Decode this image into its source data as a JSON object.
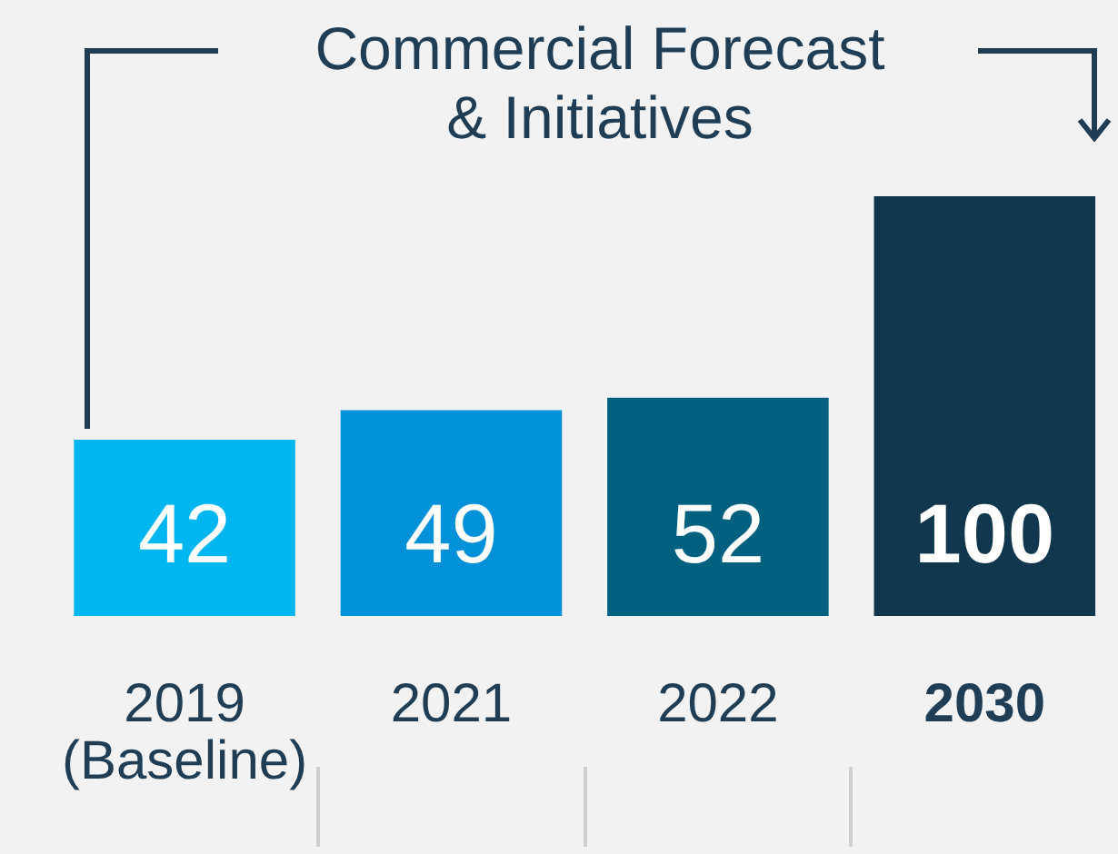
{
  "chart_data": {
    "type": "bar",
    "categories": [
      "2019 (Baseline)",
      "2021",
      "2022",
      "2030"
    ],
    "values": [
      42,
      49,
      52,
      100
    ],
    "colors": [
      "#00b6f0",
      "#0091d9",
      "#006080",
      "#10374d"
    ],
    "ylim": [
      0,
      100
    ],
    "data_labels": true,
    "grid": false,
    "legend": false,
    "tick_labels": "x",
    "annotations": [
      "Commercial Forecast & Initiatives"
    ]
  }
}
